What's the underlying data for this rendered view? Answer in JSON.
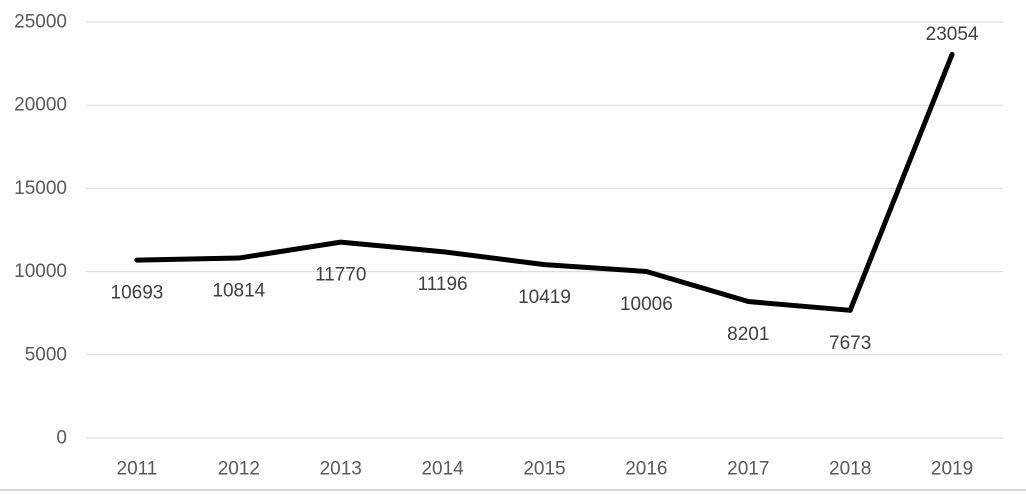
{
  "chart_data": {
    "type": "line",
    "title": "",
    "xlabel": "",
    "ylabel": "",
    "categories": [
      "2011",
      "2012",
      "2013",
      "2014",
      "2015",
      "2016",
      "2017",
      "2018",
      "2019"
    ],
    "series": [
      {
        "name": "value",
        "values": [
          10693,
          10814,
          11770,
          11196,
          10419,
          10006,
          8201,
          7673,
          23054
        ],
        "data_labels": [
          "10693",
          "10814",
          "11770",
          "11196",
          "10419",
          "10006",
          "8201",
          "7673",
          "23054"
        ],
        "label_positions": [
          "below",
          "below",
          "below",
          "below",
          "below",
          "below",
          "below",
          "below",
          "above"
        ]
      }
    ],
    "ylim": [
      0,
      25000
    ],
    "yticks": [
      0,
      5000,
      10000,
      15000,
      20000,
      25000
    ],
    "ytick_labels": [
      "0",
      "5000",
      "10000",
      "15000",
      "20000",
      "25000"
    ],
    "grid": true,
    "legend": false,
    "colors": {
      "line": "#000000",
      "gridline": "#d9d9d9",
      "axis_label": "#595959",
      "data_label": "#404040",
      "bottom_border": "#ccd6ea",
      "background": "#ffffff"
    },
    "line_width": 5
  }
}
